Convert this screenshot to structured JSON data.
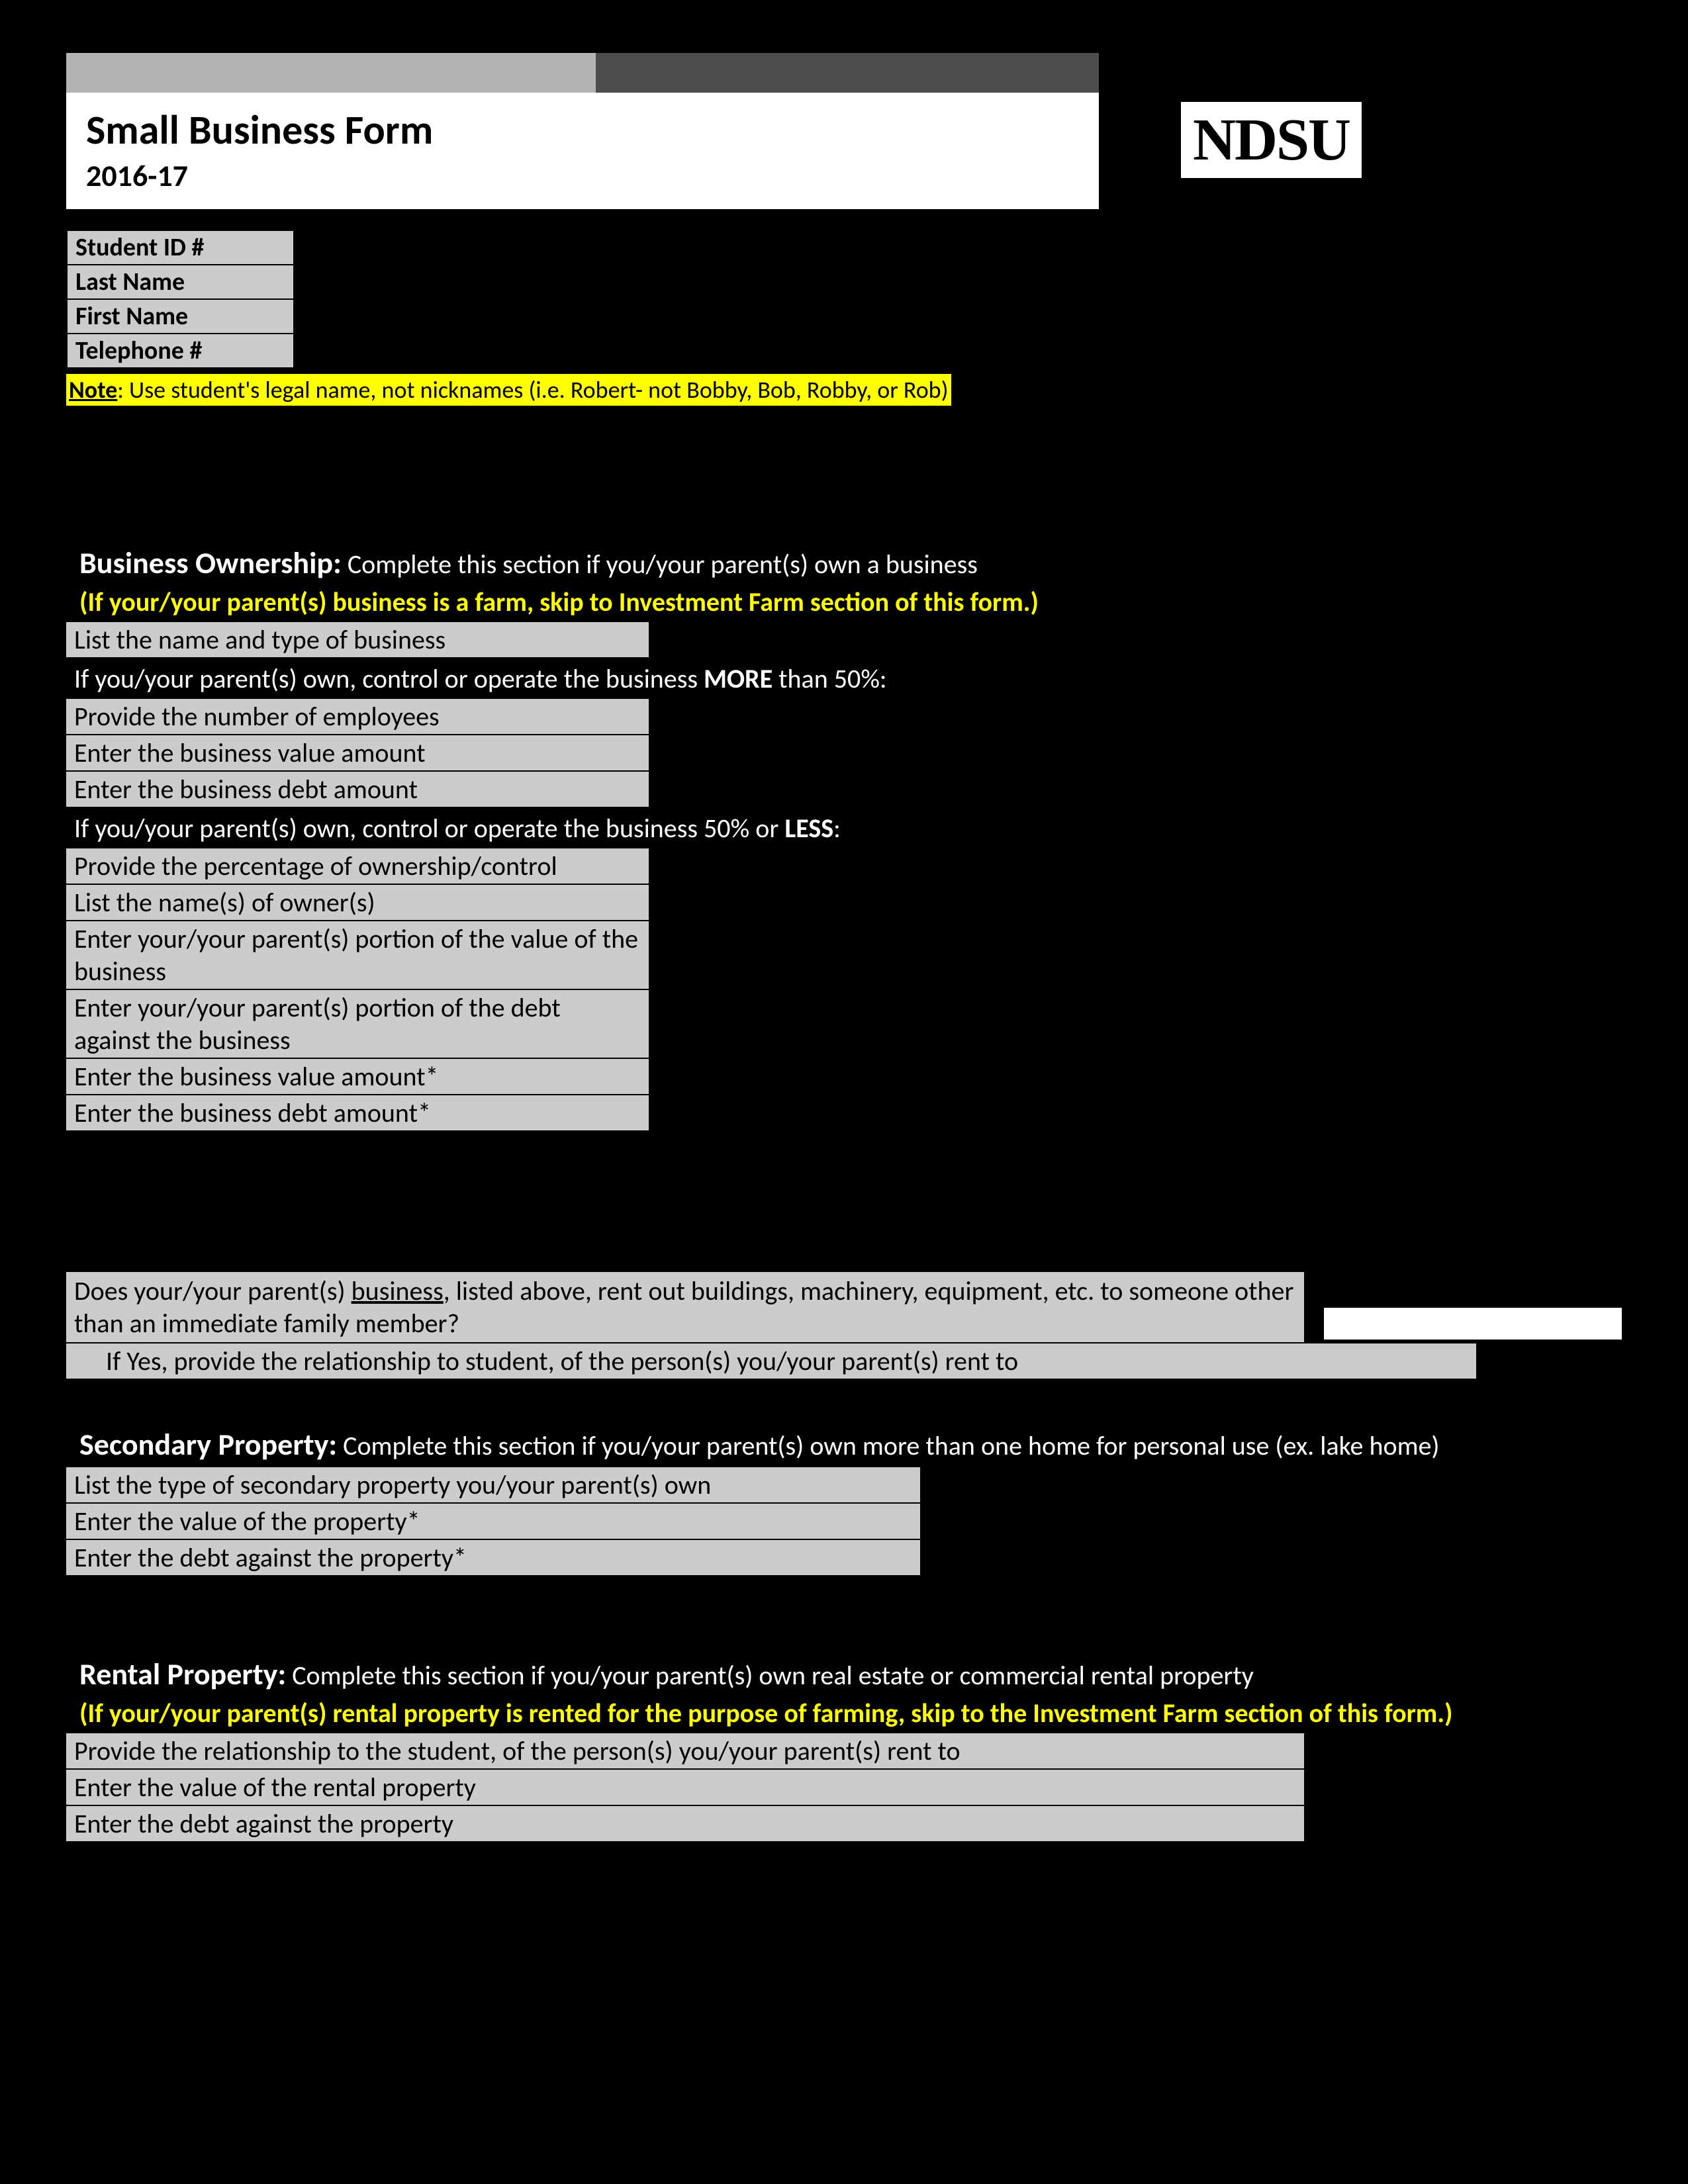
{
  "header": {
    "title": "Small Business Form",
    "year": "2016-17",
    "logo": "NDSU"
  },
  "student_info": {
    "fields": [
      "Student ID #",
      "Last Name",
      "First Name",
      "Telephone #"
    ],
    "note_label": "Note",
    "note_text": ": Use student's legal name, not nicknames (i.e. Robert- not Bobby, Bob, Robby, or Rob)"
  },
  "business": {
    "title": "Business Ownership:",
    "title_sub": " Complete this section if you/your parent(s) own a business",
    "skip": "(If your/your parent(s) business is a farm, skip to Investment Farm section of this form.)",
    "f_name": "List the name and type of business",
    "more_pre": "If you/your parent(s) own, control or operate the business ",
    "more_bold": "MORE",
    "more_post": " than 50%:",
    "f_emp": "Provide the number of employees",
    "f_val": "Enter the business value amount",
    "f_debt": "Enter the business debt amount",
    "less_pre": "If you/your parent(s) own, control or operate the business 50% or ",
    "less_bold": "LESS",
    "less_post": ":",
    "f_pct": "Provide the percentage of ownership/control",
    "f_owners": "List the name(s) of owner(s)",
    "f_portion_val": "Enter your/your parent(s) portion of the value of the business",
    "f_portion_debt": "Enter your/your parent(s) portion of the debt against the business",
    "f_val2": "Enter the business value amount*",
    "f_debt2": "Enter the business debt amount*"
  },
  "rent_q": {
    "q_pre": "Does your/your parent(s) ",
    "q_u": "business",
    "q_post": ", listed above, rent out buildings, machinery, equipment, etc. to someone other than an immediate family member?",
    "ifyes": "If Yes, provide the relationship to student, of the person(s) you/your parent(s) rent to"
  },
  "secondary": {
    "title": "Secondary Property:",
    "title_sub": " Complete this section if you/your parent(s) own more than one home for personal use (ex. lake home)",
    "f_type": "List the type of secondary property you/your parent(s) own",
    "f_val": "Enter the value of the property*",
    "f_debt": "Enter the debt against the property*"
  },
  "rental": {
    "title": "Rental Property:",
    "title_sub": " Complete this section if you/your parent(s) own real estate or commercial rental property",
    "skip": "(If your/your parent(s) rental property is rented for the purpose of farming, skip to the Investment Farm section of this form.)",
    "f_rel": "Provide the relationship to the student, of the person(s) you/your parent(s) rent to",
    "f_val": "Enter the value of the rental property",
    "f_debt": "Enter the debt against the property"
  }
}
